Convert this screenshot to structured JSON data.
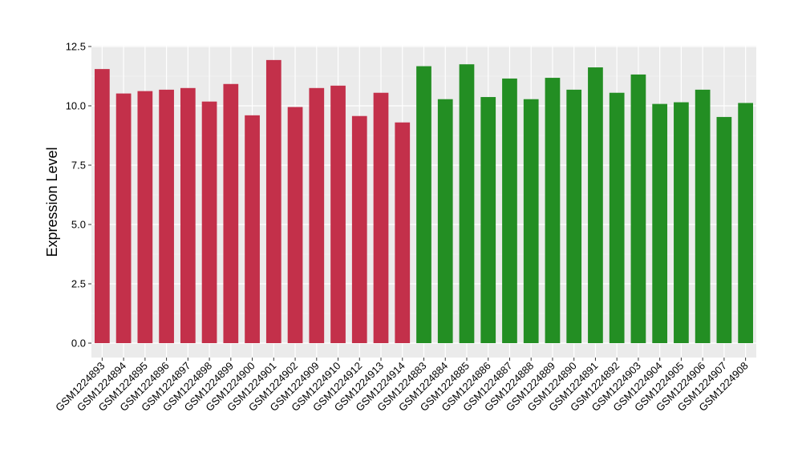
{
  "chart_data": {
    "type": "bar",
    "title": "",
    "xlabel": "",
    "ylabel": "Expression Level",
    "ylim": [
      0,
      12.5
    ],
    "yticks": [
      "0.0",
      "2.5",
      "5.0",
      "7.5",
      "10.0",
      "12.5"
    ],
    "grid": true,
    "panel_background": "#ebebeb",
    "categories": [
      "GSM1224893",
      "GSM1224894",
      "GSM1224895",
      "GSM1224896",
      "GSM1224897",
      "GSM1224898",
      "GSM1224899",
      "GSM1224900",
      "GSM1224901",
      "GSM1224902",
      "GSM1224909",
      "GSM1224910",
      "GSM1224912",
      "GSM1224913",
      "GSM1224914",
      "GSM1224883",
      "GSM1224884",
      "GSM1224885",
      "GSM1224886",
      "GSM1224887",
      "GSM1224888",
      "GSM1224889",
      "GSM1224890",
      "GSM1224891",
      "GSM1224892",
      "GSM1224903",
      "GSM1224904",
      "GSM1224905",
      "GSM1224906",
      "GSM1224907",
      "GSM1224908"
    ],
    "values": [
      11.55,
      10.52,
      10.62,
      10.68,
      10.75,
      10.18,
      10.92,
      9.6,
      11.93,
      9.95,
      10.75,
      10.85,
      9.57,
      10.55,
      9.3,
      11.67,
      10.28,
      11.75,
      10.37,
      11.15,
      10.28,
      11.18,
      10.68,
      11.62,
      10.55,
      11.32,
      10.08,
      10.15,
      10.68,
      9.53,
      10.12
    ],
    "colors": [
      "#c3304a",
      "#c3304a",
      "#c3304a",
      "#c3304a",
      "#c3304a",
      "#c3304a",
      "#c3304a",
      "#c3304a",
      "#c3304a",
      "#c3304a",
      "#c3304a",
      "#c3304a",
      "#c3304a",
      "#c3304a",
      "#c3304a",
      "#238e23",
      "#238e23",
      "#238e23",
      "#238e23",
      "#238e23",
      "#238e23",
      "#238e23",
      "#238e23",
      "#238e23",
      "#238e23",
      "#238e23",
      "#238e23",
      "#238e23",
      "#238e23",
      "#238e23",
      "#238e23"
    ]
  }
}
